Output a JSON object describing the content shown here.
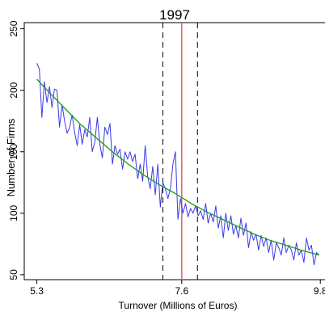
{
  "chart_data": {
    "type": "line",
    "title": "1997",
    "xlabel": "Turnover (Millions of Euros)",
    "ylabel": "Number of Firms",
    "xlim": [
      5.1,
      9.9
    ],
    "ylim": [
      46,
      255
    ],
    "xticks": [
      5.3,
      7.6,
      9.8
    ],
    "xtick_labels": [
      "5.3",
      "7.6",
      "9.8"
    ],
    "yticks": [
      50,
      100,
      150,
      200,
      250
    ],
    "ytick_labels": [
      "50",
      "100",
      "150",
      "200",
      "250"
    ],
    "grid": false,
    "legend": "none",
    "colors": {
      "raw": "#3a3ae8",
      "fit": "#1a9a1a",
      "threshold": "#e06a6a",
      "bounds": "#000000"
    },
    "vlines": [
      {
        "x": 7.6,
        "style": "solid",
        "role": "threshold"
      },
      {
        "x": 7.3,
        "style": "dashed",
        "role": "bound"
      },
      {
        "x": 7.85,
        "style": "dashed",
        "role": "bound"
      }
    ],
    "series": [
      {
        "role": "raw",
        "x": [
          5.3,
          5.34,
          5.38,
          5.42,
          5.46,
          5.5,
          5.54,
          5.58,
          5.62,
          5.66,
          5.7,
          5.74,
          5.78,
          5.82,
          5.86,
          5.9,
          5.94,
          5.98,
          6.02,
          6.06,
          6.1,
          6.14,
          6.18,
          6.22,
          6.26,
          6.3,
          6.34,
          6.38,
          6.42,
          6.46,
          6.5,
          6.54,
          6.58,
          6.62,
          6.66,
          6.7,
          6.74,
          6.78,
          6.82,
          6.86,
          6.9,
          6.94,
          6.98,
          7.02,
          7.06,
          7.1,
          7.14,
          7.18,
          7.22,
          7.26,
          7.3,
          7.34,
          7.38,
          7.42,
          7.46,
          7.5,
          7.54,
          7.58,
          7.62,
          7.66,
          7.7,
          7.74,
          7.78,
          7.82,
          7.86,
          7.9,
          7.94,
          7.98,
          8.02,
          8.06,
          8.1,
          8.14,
          8.18,
          8.22,
          8.26,
          8.3,
          8.34,
          8.38,
          8.42,
          8.46,
          8.5,
          8.54,
          8.58,
          8.62,
          8.66,
          8.7,
          8.74,
          8.78,
          8.82,
          8.86,
          8.9,
          8.94,
          8.98,
          9.02,
          9.06,
          9.1,
          9.14,
          9.18,
          9.22,
          9.26,
          9.3,
          9.34,
          9.38,
          9.42,
          9.46,
          9.5,
          9.54,
          9.58,
          9.62,
          9.66,
          9.7,
          9.74,
          9.78
        ],
        "y": [
          222,
          217,
          178,
          207,
          190,
          203,
          186,
          201,
          200,
          170,
          188,
          175,
          165,
          170,
          180,
          166,
          155,
          172,
          156,
          168,
          162,
          178,
          150,
          158,
          178,
          156,
          145,
          170,
          164,
          173,
          140,
          155,
          148,
          152,
          136,
          150,
          144,
          150,
          142,
          148,
          128,
          140,
          126,
          155,
          130,
          120,
          138,
          115,
          140,
          105,
          125,
          120,
          112,
          120,
          140,
          150,
          95,
          112,
          100,
          108,
          97,
          104,
          100,
          106,
          98,
          102,
          95,
          108,
          92,
          100,
          93,
          106,
          88,
          98,
          80,
          100,
          86,
          98,
          83,
          90,
          80,
          96,
          82,
          92,
          72,
          85,
          78,
          83,
          70,
          82,
          73,
          80,
          68,
          78,
          62,
          76,
          72,
          66,
          80,
          68,
          74,
          70,
          62,
          76,
          66,
          70,
          60,
          80,
          70,
          74,
          58,
          68,
          66
        ]
      },
      {
        "role": "fit",
        "x": [
          5.3,
          5.5,
          5.75,
          6.0,
          6.25,
          6.5,
          6.75,
          7.0,
          7.25,
          7.5,
          7.75,
          8.0,
          8.25,
          8.5,
          8.75,
          9.0,
          9.25,
          9.5,
          9.78
        ],
        "y": [
          209,
          198,
          185,
          172,
          161,
          150,
          140,
          131,
          123,
          116,
          108,
          101,
          95,
          89,
          83,
          78,
          74,
          70,
          66
        ]
      }
    ]
  }
}
